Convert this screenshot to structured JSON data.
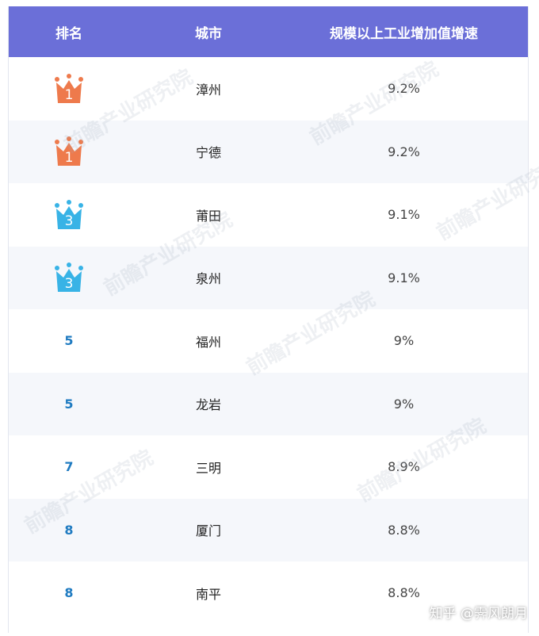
{
  "header": {
    "rank_label": "排名",
    "city_label": "城市",
    "value_label": "规模以上工业增加值增速"
  },
  "rows": [
    {
      "rank": "1",
      "crown": "orange",
      "city": "漳州",
      "value": "9.2%"
    },
    {
      "rank": "1",
      "crown": "orange",
      "city": "宁德",
      "value": "9.2%"
    },
    {
      "rank": "3",
      "crown": "blue",
      "city": "莆田",
      "value": "9.1%"
    },
    {
      "rank": "3",
      "crown": "blue",
      "city": "泉州",
      "value": "9.1%"
    },
    {
      "rank": "5",
      "crown": "",
      "city": "福州",
      "value": "9%"
    },
    {
      "rank": "5",
      "crown": "",
      "city": "龙岩",
      "value": "9%"
    },
    {
      "rank": "7",
      "crown": "",
      "city": "三明",
      "value": "8.9%"
    },
    {
      "rank": "8",
      "crown": "",
      "city": "厦门",
      "value": "8.8%"
    },
    {
      "rank": "8",
      "crown": "",
      "city": "南平",
      "value": "8.8%"
    }
  ],
  "watermark_text": "前瞻产业研究院",
  "credit": "知乎 @霁风朗月",
  "colors": {
    "header_bg": "#6b6fd8",
    "crown_orange": "#ee7a4c",
    "crown_blue": "#38b3e6",
    "rank_text": "#1f7bc1"
  }
}
